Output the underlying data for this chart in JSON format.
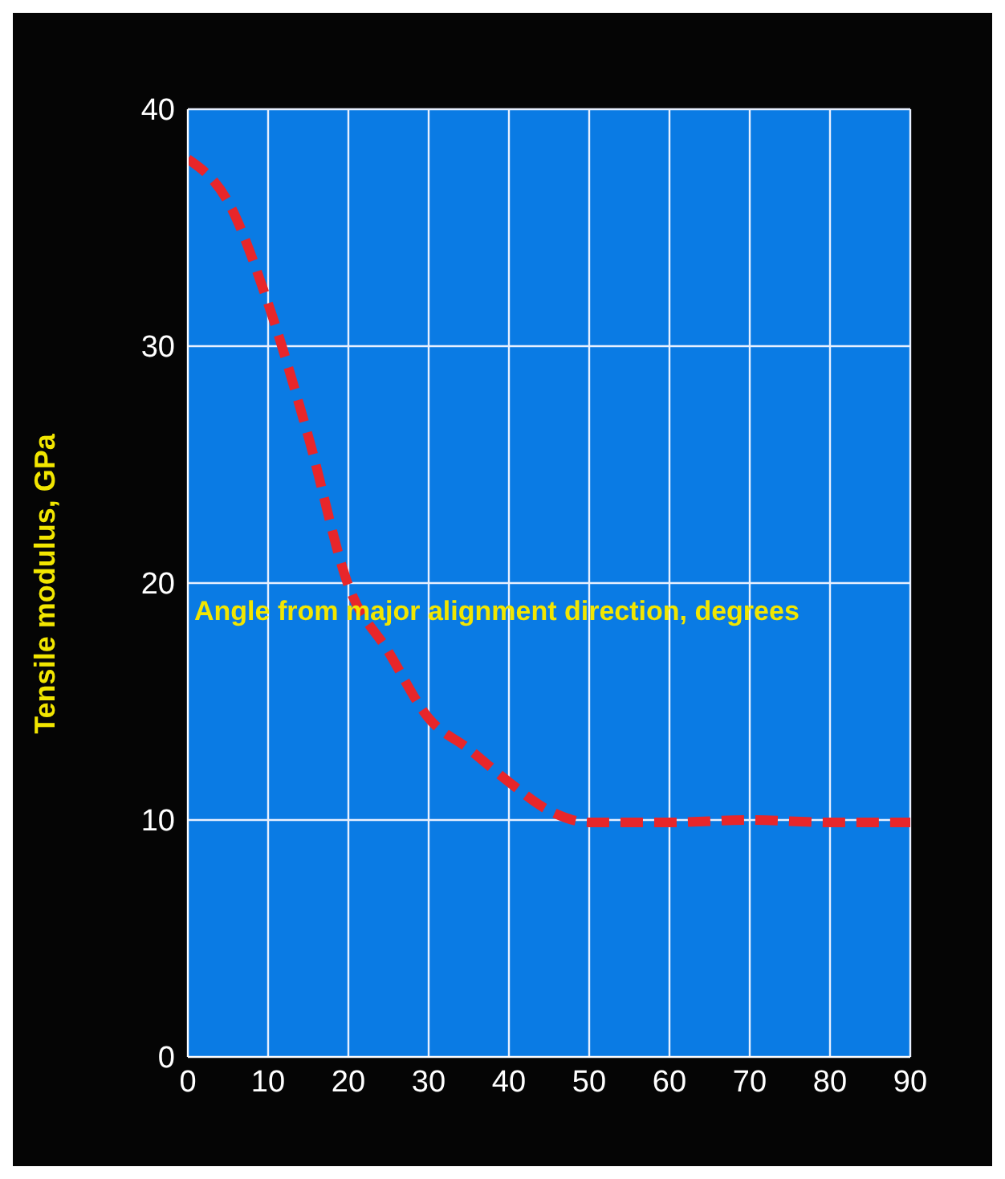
{
  "chart_data": {
    "type": "line",
    "xlabel": "Angle from major alignment direction, degrees",
    "ylabel": "Tensile modulus, GPa",
    "x": [
      0,
      5,
      10,
      15,
      20,
      25,
      30,
      35,
      40,
      45,
      50,
      60,
      70,
      80,
      90
    ],
    "series": [
      {
        "color": "#e8262a",
        "values": [
          37.9,
          36.1,
          31.8,
          26.2,
          19.9,
          17.1,
          14.3,
          13.0,
          11.6,
          10.4,
          9.9,
          9.9,
          10,
          9.9,
          9.9
        ]
      }
    ],
    "xlim": [
      0,
      90
    ],
    "xticks": [
      0,
      10,
      20,
      30,
      40,
      50,
      60,
      70,
      80,
      90
    ],
    "ylim": [
      0,
      40
    ],
    "yticks": [
      0,
      10,
      20,
      30,
      40
    ],
    "grid": true,
    "line_style": "dashed",
    "marker": "none",
    "legend": false
  }
}
